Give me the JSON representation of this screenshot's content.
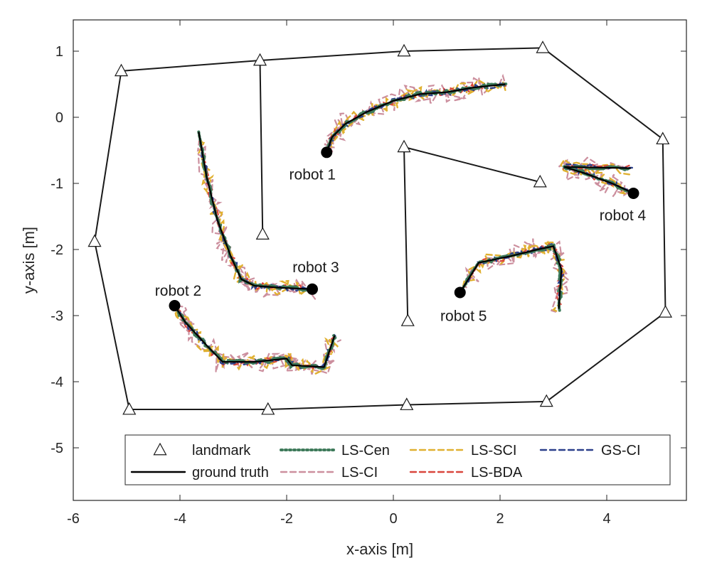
{
  "chart_data": {
    "type": "line",
    "xlabel": "x-axis [m]",
    "ylabel": "y-axis [m]",
    "xlim": [
      -6,
      5.5
    ],
    "ylim": [
      -5.8,
      1.5
    ],
    "xticks": [
      -6,
      -4,
      -2,
      0,
      2,
      4
    ],
    "yticks": [
      1,
      0,
      -1,
      -2,
      -3,
      -4,
      -5
    ],
    "grid": false,
    "legend_position": "bottom",
    "legend": [
      {
        "name": "landmark",
        "color": "#000000",
        "style": "triangle"
      },
      {
        "name": "LS-Cen",
        "color": "#3e7a5a",
        "style": "dotted"
      },
      {
        "name": "LS-SCI",
        "color": "#e0b030",
        "style": "dashed"
      },
      {
        "name": "GS-CI",
        "color": "#2b3f8a",
        "style": "dashed"
      },
      {
        "name": "ground truth",
        "color": "#000000",
        "style": "solid"
      },
      {
        "name": "LS-CI",
        "color": "#cc8f9e",
        "style": "dashed"
      },
      {
        "name": "LS-BDA",
        "color": "#d9453c",
        "style": "dashed"
      }
    ],
    "landmarks": [
      [
        -5.1,
        0.7
      ],
      [
        -2.5,
        0.86
      ],
      [
        0.2,
        1.0
      ],
      [
        2.8,
        1.05
      ],
      [
        5.05,
        -0.33
      ],
      [
        5.1,
        -2.95
      ],
      [
        2.87,
        -4.3
      ],
      [
        0.25,
        -4.35
      ],
      [
        -2.35,
        -4.42
      ],
      [
        -4.95,
        -4.42
      ],
      [
        -5.6,
        -1.88
      ],
      [
        -2.45,
        -1.77
      ],
      [
        0.2,
        -0.45
      ],
      [
        2.75,
        -0.98
      ],
      [
        0.27,
        -3.08
      ]
    ],
    "landmark_links": [
      [
        0,
        1
      ],
      [
        1,
        2
      ],
      [
        2,
        3
      ],
      [
        3,
        4
      ],
      [
        4,
        5
      ],
      [
        5,
        6
      ],
      [
        6,
        7
      ],
      [
        7,
        8
      ],
      [
        8,
        9
      ],
      [
        9,
        10
      ],
      [
        10,
        0
      ],
      [
        1,
        11
      ],
      [
        12,
        13
      ],
      [
        12,
        14
      ]
    ],
    "robots": [
      {
        "label": "robot 1",
        "start": [
          -1.25,
          -0.53
        ],
        "truth": [
          [
            -1.25,
            -0.53
          ],
          [
            -1.15,
            -0.3
          ],
          [
            -0.9,
            -0.1
          ],
          [
            -0.5,
            0.08
          ],
          [
            0,
            0.25
          ],
          [
            0.5,
            0.35
          ],
          [
            1.0,
            0.38
          ],
          [
            1.5,
            0.45
          ],
          [
            2.1,
            0.5
          ]
        ]
      },
      {
        "label": "robot 2",
        "start": [
          -4.1,
          -2.85
        ],
        "truth": [
          [
            -4.1,
            -2.85
          ],
          [
            -3.9,
            -3.1
          ],
          [
            -3.5,
            -3.45
          ],
          [
            -3.2,
            -3.7
          ],
          [
            -2.6,
            -3.7
          ],
          [
            -2.0,
            -3.65
          ],
          [
            -1.9,
            -3.75
          ],
          [
            -1.3,
            -3.78
          ],
          [
            -1.1,
            -3.3
          ]
        ]
      },
      {
        "label": "robot 3",
        "start": [
          -1.52,
          -2.6
        ],
        "truth": [
          [
            -3.65,
            -0.22
          ],
          [
            -3.5,
            -0.9
          ],
          [
            -3.3,
            -1.55
          ],
          [
            -3.05,
            -2.1
          ],
          [
            -2.85,
            -2.45
          ],
          [
            -2.6,
            -2.55
          ],
          [
            -2.1,
            -2.58
          ],
          [
            -1.52,
            -2.6
          ]
        ]
      },
      {
        "label": "robot 4",
        "start": [
          4.5,
          -1.15
        ],
        "truth": [
          [
            4.5,
            -1.15
          ],
          [
            4.1,
            -1.0
          ],
          [
            3.6,
            -0.85
          ],
          [
            3.2,
            -0.75
          ],
          [
            4.45,
            -0.77
          ]
        ]
      },
      {
        "label": "robot 5",
        "start": [
          1.25,
          -2.65
        ],
        "truth": [
          [
            1.25,
            -2.65
          ],
          [
            1.6,
            -2.2
          ],
          [
            2.2,
            -2.1
          ],
          [
            2.7,
            -2.0
          ],
          [
            3.0,
            -1.95
          ],
          [
            3.15,
            -2.3
          ],
          [
            3.1,
            -2.9
          ]
        ]
      }
    ],
    "series": [
      {
        "name": "LS-Cen",
        "x": [
          -1.2,
          -1.1,
          -0.9,
          -0.55,
          -0.1,
          0.4,
          0.95,
          1.5,
          2.15
        ],
        "y": [
          -0.5,
          -0.3,
          -0.15,
          0.05,
          0.2,
          0.3,
          0.32,
          0.42,
          0.55
        ]
      }
    ]
  }
}
